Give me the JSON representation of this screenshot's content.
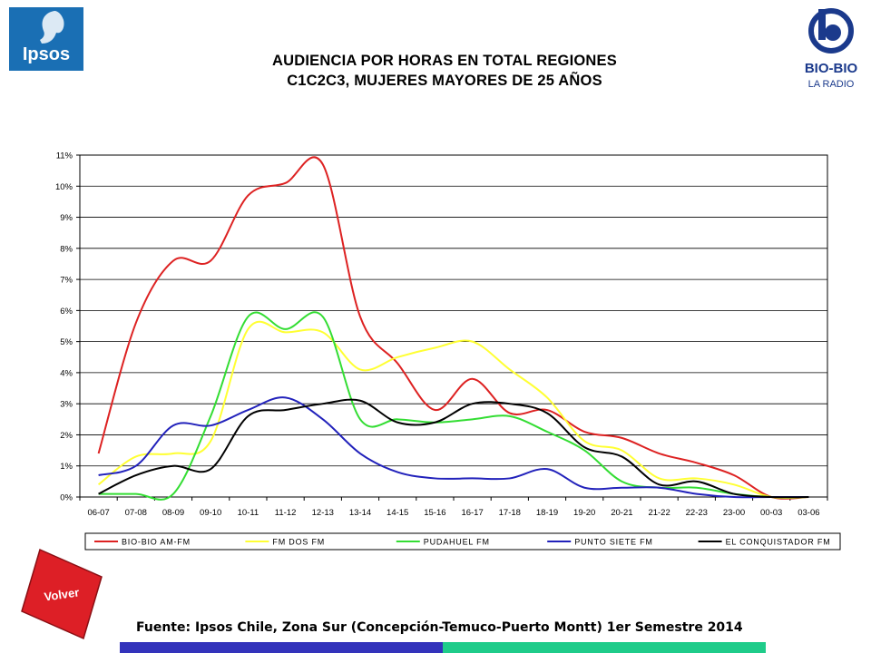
{
  "header": {
    "title_line1": "AUDIENCIA POR HORAS EN TOTAL REGIONES",
    "title_line2": "C1C2C3, MUJERES MAYORES DE 25 AÑOS",
    "ipsos_logo_text": "Ipsos",
    "biobio_logo_text": "BIO-BIO",
    "biobio_logo_sub": "LA RADIO"
  },
  "footer": {
    "volver_label": "Volver",
    "source": "Fuente: Ipsos Chile, Zona Sur (Concepción-Temuco-Puerto Montt) 1er Semestre 2014"
  },
  "colors": {
    "ipsos_blue": "#1a6fb4",
    "biobio_blue": "#1b3a8c",
    "volver_red": "#dd1f26",
    "bar_blue": "#3333bb",
    "bar_green": "#1fcc8a"
  },
  "chart_data": {
    "type": "line",
    "x": [
      "06-07",
      "07-08",
      "08-09",
      "09-10",
      "10-11",
      "11-12",
      "12-13",
      "13-14",
      "14-15",
      "15-16",
      "16-17",
      "17-18",
      "18-19",
      "19-20",
      "20-21",
      "21-22",
      "22-23",
      "23-00",
      "00-03",
      "03-06"
    ],
    "ylim": [
      0,
      11
    ],
    "yticks": [
      "0%",
      "1%",
      "2%",
      "3%",
      "4%",
      "5%",
      "6%",
      "7%",
      "8%",
      "9%",
      "10%",
      "11%"
    ],
    "grid": true,
    "legend_position": "bottom",
    "series": [
      {
        "name": "BIO-BIO AM-FM",
        "color": "#dd2222",
        "values": [
          1.4,
          5.6,
          7.6,
          7.6,
          9.7,
          10.1,
          10.7,
          5.8,
          4.3,
          2.8,
          3.8,
          2.7,
          2.8,
          2.1,
          1.9,
          1.4,
          1.1,
          0.7,
          0.0,
          0.0
        ]
      },
      {
        "name": "FM DOS FM",
        "color": "#ffff33",
        "values": [
          0.4,
          1.3,
          1.4,
          1.8,
          5.4,
          5.3,
          5.3,
          4.1,
          4.5,
          4.8,
          5.0,
          4.1,
          3.2,
          1.8,
          1.5,
          0.6,
          0.6,
          0.4,
          0.0,
          0.0
        ]
      },
      {
        "name": "PUDAHUEL FM",
        "color": "#33dd33",
        "values": [
          0.1,
          0.1,
          0.1,
          2.6,
          5.8,
          5.4,
          5.8,
          2.5,
          2.5,
          2.4,
          2.5,
          2.6,
          2.1,
          1.5,
          0.5,
          0.3,
          0.3,
          0.1,
          0.0,
          0.0
        ]
      },
      {
        "name": "PUNTO SIETE FM",
        "color": "#2222bb",
        "values": [
          0.7,
          1.0,
          2.3,
          2.3,
          2.8,
          3.2,
          2.5,
          1.4,
          0.8,
          0.6,
          0.6,
          0.6,
          0.9,
          0.3,
          0.3,
          0.3,
          0.1,
          0.0,
          0.0,
          0.0
        ]
      },
      {
        "name": "EL CONQUISTADOR FM",
        "color": "#000000",
        "values": [
          0.1,
          0.7,
          1.0,
          0.9,
          2.6,
          2.8,
          3.0,
          3.1,
          2.4,
          2.4,
          3.0,
          3.0,
          2.7,
          1.6,
          1.3,
          0.4,
          0.5,
          0.1,
          0.0,
          0.0
        ]
      }
    ]
  }
}
